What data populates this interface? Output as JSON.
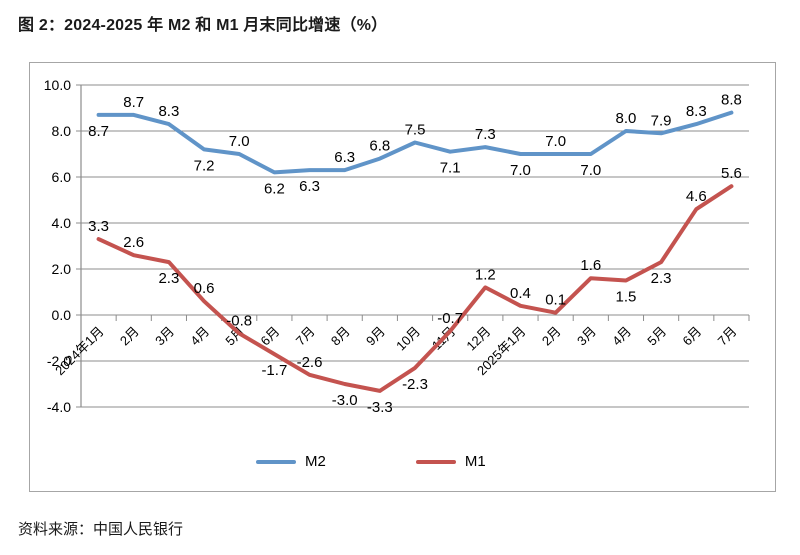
{
  "title": "图 2：2024-2025 年 M2 和 M1 月末同比增速（%）",
  "source": "资料来源：中国人民银行",
  "chart_data": {
    "type": "line",
    "title": "图 2：2024-2025 年 M2 和 M1 月末同比增速（%）",
    "categories": [
      "2024年1月",
      "2月",
      "3月",
      "4月",
      "5月",
      "6月",
      "7月",
      "8月",
      "9月",
      "10月",
      "11月",
      "12月",
      "2025年1月",
      "2月",
      "3月",
      "4月",
      "5月",
      "6月",
      "7月"
    ],
    "series": [
      {
        "name": "M2",
        "color": "#6094c8",
        "values": [
          8.7,
          8.7,
          8.3,
          7.2,
          7.0,
          6.2,
          6.3,
          6.3,
          6.8,
          7.5,
          7.1,
          7.3,
          7.0,
          7.0,
          7.0,
          8.0,
          7.9,
          8.3,
          8.8
        ],
        "label_pos": [
          "below",
          "above",
          "above",
          "below",
          "above",
          "below",
          "below",
          "above",
          "above",
          "above",
          "below",
          "above",
          "below",
          "above",
          "below",
          "above",
          "above",
          "above",
          "above"
        ]
      },
      {
        "name": "M1",
        "color": "#c4534f",
        "values": [
          3.3,
          2.6,
          2.3,
          0.6,
          -0.8,
          -1.7,
          -2.6,
          -3.0,
          -3.3,
          -2.3,
          -0.7,
          1.2,
          0.4,
          0.1,
          1.6,
          1.5,
          2.3,
          4.6,
          5.6
        ],
        "label_pos": [
          "above",
          "above",
          "below",
          "above",
          "above",
          "below",
          "above",
          "below",
          "below",
          "below",
          "above",
          "above",
          "above",
          "above",
          "above",
          "below",
          "below",
          "above",
          "above"
        ]
      }
    ],
    "ylim": [
      -4,
      10
    ],
    "yticks": [
      10,
      8,
      6,
      4,
      2,
      0,
      -2,
      -4
    ],
    "ytick_labels": [
      "10.0",
      "8.0",
      "6.0",
      "4.0",
      "2.0",
      "0.0",
      "-2.0",
      "-4.0"
    ],
    "grid": true,
    "legend_position": "bottom",
    "axis_color": "#8c8c8c",
    "label_color": "#000000"
  }
}
